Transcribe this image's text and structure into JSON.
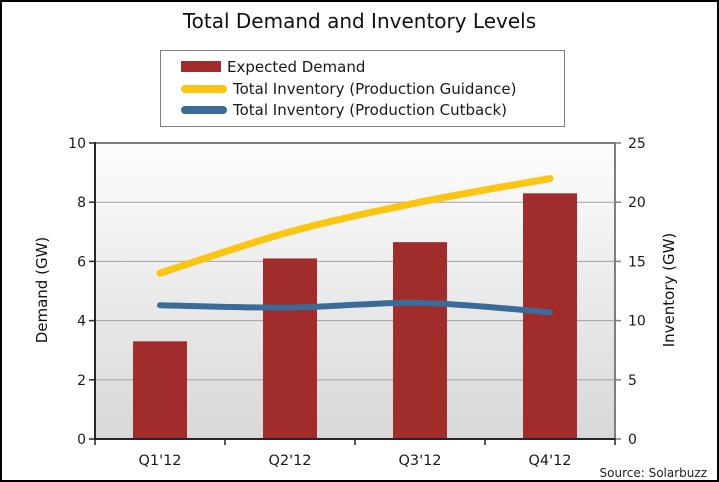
{
  "chart_data": {
    "type": "combo",
    "title": "Total Demand and Inventory Levels",
    "source": "Source: Solarbuzz",
    "categories": [
      "Q1'12",
      "Q2'12",
      "Q3'12",
      "Q4'12"
    ],
    "series": [
      {
        "name": "Expected Demand",
        "type": "bar",
        "axis": "left",
        "color": "#A02C2C",
        "values": [
          3.3,
          6.1,
          6.65,
          8.3
        ]
      },
      {
        "name": "Total Inventory (Production Guidance)",
        "type": "line",
        "axis": "right",
        "color": "#FCC511",
        "values": [
          14,
          17.5,
          20,
          22
        ]
      },
      {
        "name": "Total Inventory (Production Cutback)",
        "type": "line",
        "axis": "right",
        "color": "#3B6B99",
        "values": [
          11.3,
          11.1,
          11.5,
          10.7
        ]
      }
    ],
    "left_axis": {
      "label": "Demand (GW)",
      "min": 0,
      "max": 10,
      "ticks": [
        0,
        2,
        4,
        6,
        8,
        10
      ]
    },
    "right_axis": {
      "label": "Inventory (GW)",
      "min": 0,
      "max": 25,
      "ticks": [
        0,
        5,
        10,
        15,
        20,
        25
      ]
    },
    "legend_position": "top",
    "grid": "horizontal",
    "colors": {
      "gridline": "#A0A0A0",
      "axis_dark": "#262626",
      "axis_gray": "#7F7F7F",
      "plot_bg_top": "#FDFDFD",
      "plot_bg_bottom": "#D8D8D8",
      "text": "#1a1a1a"
    }
  }
}
